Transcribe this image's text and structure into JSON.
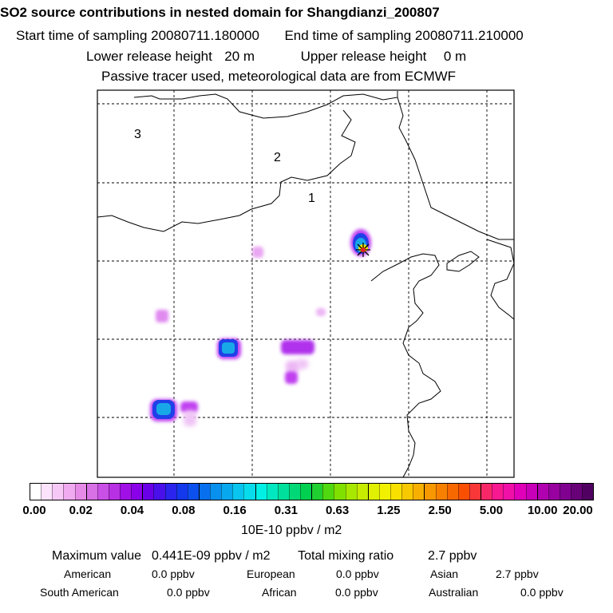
{
  "header": {
    "title": "SO2 source contributions in nested domain for Shangdianzi_200807",
    "start_label": "Start time of sampling",
    "start_value": "20080711.180000",
    "end_label": "End time of sampling",
    "end_value": "20080711.210000",
    "lower_label": "Lower release height",
    "lower_value": "20 m",
    "upper_label": "Upper release height",
    "upper_value": "0 m",
    "note": "Passive tracer used, meteorological data are from ECMWF"
  },
  "map": {
    "domain_labels": [
      "1",
      "2",
      "3"
    ],
    "receptor_icon": "receptor-star-icon",
    "plume_colors": {
      "light": "#e9a6f2",
      "mid": "#c040f0",
      "purple": "#9a10e8",
      "blue": "#2040e8",
      "cyan": "#18a8e8",
      "yellow": "#f0e400"
    }
  },
  "legend": {
    "ticks": [
      "0.00",
      "0.02",
      "0.04",
      "0.08",
      "0.16",
      "0.31",
      "0.63",
      "1.25",
      "2.50",
      "5.00",
      "10.00",
      "20.00"
    ],
    "units": "10E-10 ppbv / m2",
    "colors": [
      "#ffffff",
      "#fbe3fb",
      "#f6c8f6",
      "#f0aaf0",
      "#e68ae8",
      "#d870e6",
      "#c850e6",
      "#b830e4",
      "#a010e6",
      "#8a00e8",
      "#6a00e8",
      "#4a10ea",
      "#2a24ec",
      "#1438ec",
      "#0c50ee",
      "#0870ee",
      "#0890ee",
      "#08a8ee",
      "#08c4ee",
      "#08dcec",
      "#00f0e6",
      "#00e8c0",
      "#00e09c",
      "#00d878",
      "#00d050",
      "#20d030",
      "#50d810",
      "#80e000",
      "#a8e800",
      "#c8ec00",
      "#e0f000",
      "#f0f000",
      "#f8e000",
      "#f8c800",
      "#f8b000",
      "#f89800",
      "#f88000",
      "#f86800",
      "#f85000",
      "#f83838",
      "#f82868",
      "#f81890",
      "#f010a8",
      "#e000b8",
      "#c800b8",
      "#b000b0",
      "#9800a0",
      "#800090",
      "#680078",
      "#500060"
    ]
  },
  "stats": {
    "max_label": "Maximum value",
    "max_value": "0.441E-09 ppbv / m2",
    "total_label": "Total mixing ratio",
    "total_value": "2.7 ppbv",
    "regions": [
      {
        "name": "American",
        "value": "0.0 ppbv"
      },
      {
        "name": "European",
        "value": "0.0 ppbv"
      },
      {
        "name": "Asian",
        "value": "2.7 ppbv"
      },
      {
        "name": "South American",
        "value": "0.0 ppbv"
      },
      {
        "name": "African",
        "value": "0.0 ppbv"
      },
      {
        "name": "Australian",
        "value": "0.0 ppbv"
      }
    ]
  }
}
